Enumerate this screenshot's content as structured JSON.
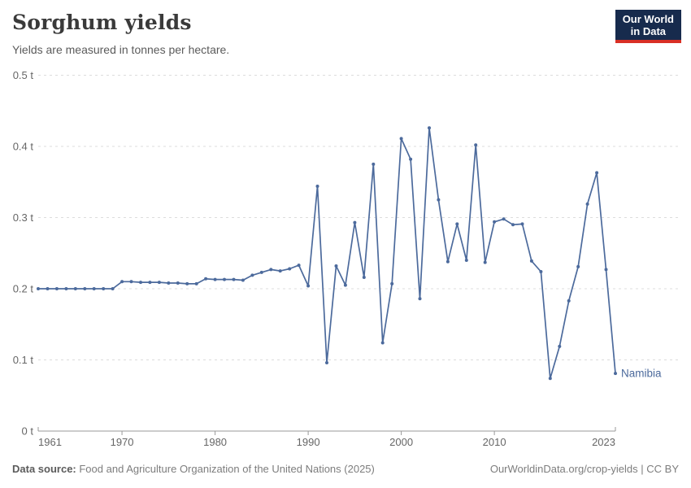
{
  "header": {
    "title": "Sorghum yields",
    "subtitle": "Yields are measured in tonnes per hectare.",
    "logo": {
      "line1": "Our World",
      "line2": "in Data"
    }
  },
  "footer": {
    "source_label": "Data source:",
    "source_text": " Food and Agriculture Organization of the United Nations (2025)",
    "link_text": "OurWorldinData.org/crop-yields | CC BY"
  },
  "colors": {
    "series": "#4C6A9C",
    "grid": "#dcdcdc",
    "axis": "#999999",
    "tick_label": "#666666",
    "logo_bg": "#172b4d",
    "logo_red": "#d93025"
  },
  "chart_data": {
    "type": "line",
    "title": "Sorghum yields",
    "ylabel": "",
    "xlabel": "",
    "unit": "t",
    "grid": "horizontal-dashed",
    "legend_position": "end-of-line-label",
    "x_range": [
      1961,
      2023
    ],
    "ylim": [
      0,
      0.5
    ],
    "yticks": [
      {
        "value": 0,
        "label": "0 t"
      },
      {
        "value": 0.1,
        "label": "0.1 t"
      },
      {
        "value": 0.2,
        "label": "0.2 t"
      },
      {
        "value": 0.3,
        "label": "0.3 t"
      },
      {
        "value": 0.4,
        "label": "0.4 t"
      },
      {
        "value": 0.5,
        "label": "0.5 t"
      }
    ],
    "xticks": [
      {
        "value": 1961,
        "label": "1961",
        "align": "start"
      },
      {
        "value": 1970,
        "label": "1970",
        "align": "middle"
      },
      {
        "value": 1980,
        "label": "1980",
        "align": "middle"
      },
      {
        "value": 1990,
        "label": "1990",
        "align": "middle"
      },
      {
        "value": 2000,
        "label": "2000",
        "align": "middle"
      },
      {
        "value": 2010,
        "label": "2010",
        "align": "middle"
      },
      {
        "value": 2023,
        "label": "2023",
        "align": "end"
      }
    ],
    "series": [
      {
        "name": "Namibia",
        "color": "#4C6A9C",
        "x_start": 1961,
        "values": [
          0.2,
          0.2,
          0.2,
          0.2,
          0.2,
          0.2,
          0.2,
          0.2,
          0.2,
          0.21,
          0.21,
          0.209,
          0.209,
          0.209,
          0.208,
          0.208,
          0.207,
          0.207,
          0.214,
          0.213,
          0.213,
          0.213,
          0.212,
          0.219,
          0.223,
          0.227,
          0.225,
          0.228,
          0.233,
          0.204,
          0.344,
          0.096,
          0.232,
          0.205,
          0.293,
          0.216,
          0.375,
          0.124,
          0.207,
          0.411,
          0.382,
          0.186,
          0.426,
          0.325,
          0.238,
          0.291,
          0.24,
          0.402,
          0.237,
          0.294,
          0.298,
          0.29,
          0.291,
          0.239,
          0.224,
          0.074,
          0.119,
          0.183,
          0.231,
          0.319,
          0.363,
          0.227,
          0.081
        ]
      }
    ]
  }
}
